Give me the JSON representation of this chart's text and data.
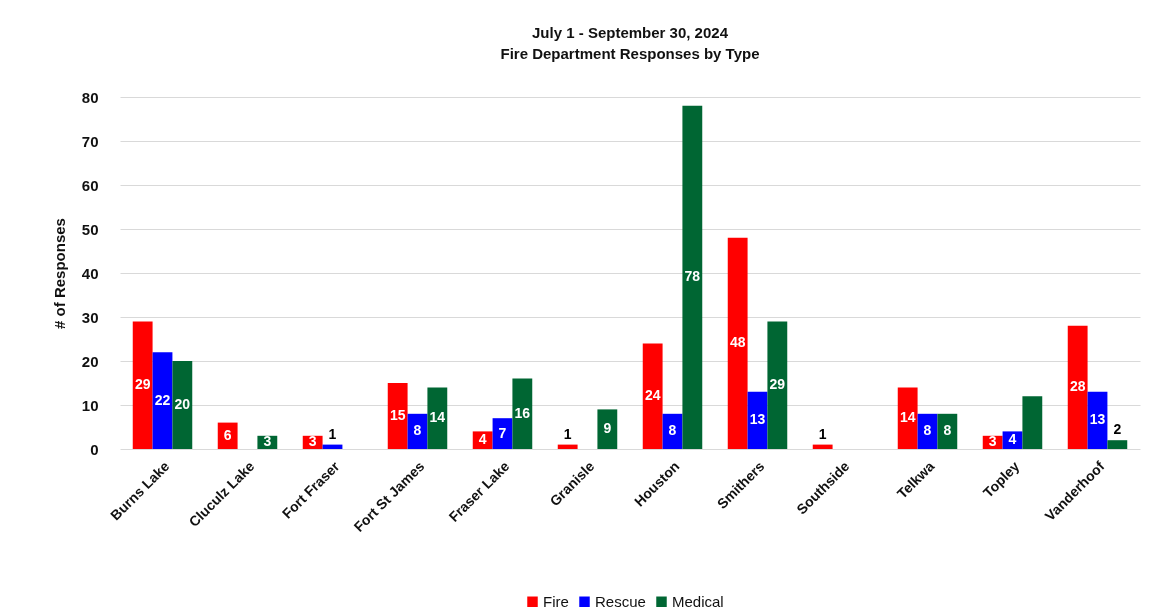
{
  "chart_data": {
    "type": "bar",
    "title": "July 1 - September 30, 2024",
    "subtitle": "Fire Department Responses by Type",
    "ylabel": "# of Responses",
    "categories": [
      "Burns Lake",
      "Cluculz Lake",
      "Fort Fraser",
      "Fort St James",
      "Fraser Lake",
      "Granisle",
      "Houston",
      "Smithers",
      "Southside",
      "Telkwa",
      "Topley",
      "Vanderhoof"
    ],
    "series": [
      {
        "name": "Fire",
        "color": "#ff0000",
        "values": [
          29,
          6,
          3,
          15,
          4,
          1,
          24,
          48,
          1,
          14,
          3,
          28
        ],
        "value_labels": [
          "29",
          "6",
          "3",
          "15",
          "4",
          "1",
          "24",
          "48",
          "1",
          "14",
          "3",
          "28"
        ]
      },
      {
        "name": "Rescue",
        "color": "#0000ff",
        "values": [
          22,
          0,
          1,
          8,
          7,
          0,
          8,
          13,
          0,
          8,
          4,
          13
        ],
        "value_labels": [
          "22",
          null,
          "1",
          "8",
          "7",
          null,
          "8",
          "13",
          null,
          "8",
          "4",
          "13"
        ]
      },
      {
        "name": "Medical",
        "color": "#006633",
        "values": [
          20,
          3,
          0,
          14,
          16,
          9,
          78,
          29,
          0,
          8,
          12,
          2
        ],
        "value_labels": [
          "20",
          "3",
          null,
          "14",
          "16",
          "9",
          "78",
          "29",
          null,
          "8",
          null,
          "2"
        ]
      }
    ],
    "ylim": [
      0,
      80
    ],
    "yticks": [
      0,
      10,
      20,
      30,
      40,
      50,
      60,
      70,
      80
    ],
    "grid": "y",
    "legend": "bottom"
  }
}
